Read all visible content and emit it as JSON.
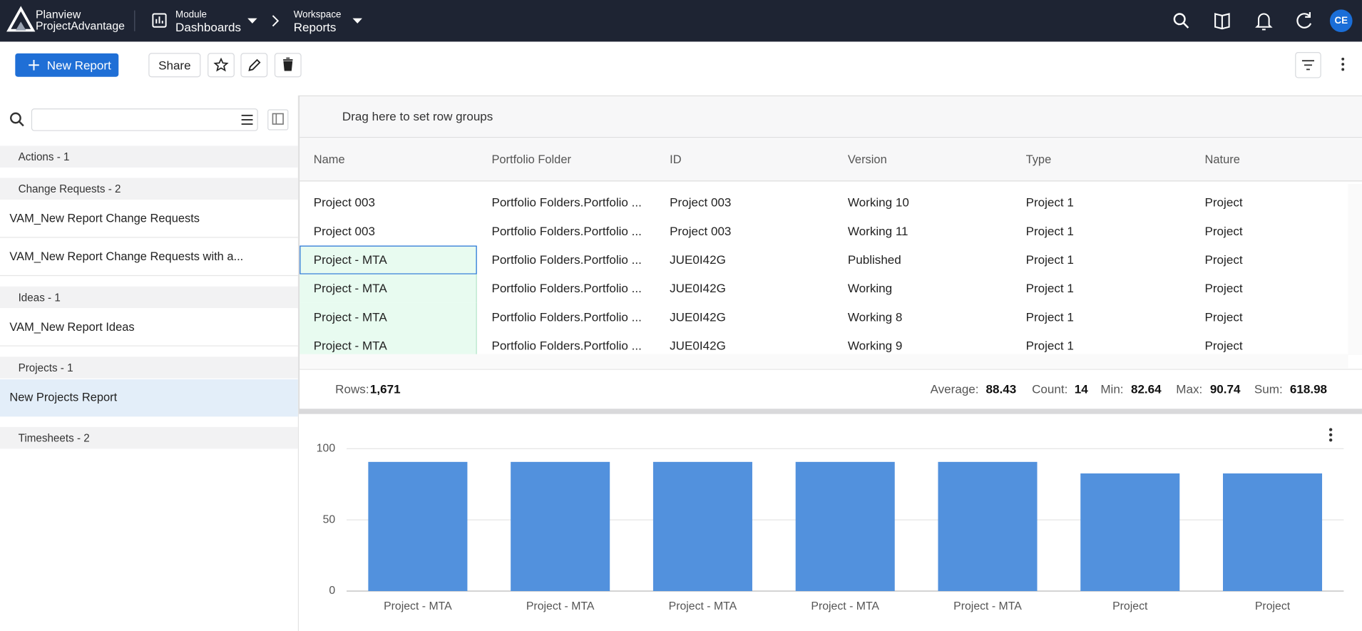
{
  "header": {
    "brand_line1": "Planview",
    "brand_line2": "ProjectAdvantage",
    "module_label": "Module",
    "module_value": "Dashboards",
    "workspace_label": "Workspace",
    "workspace_value": "Reports",
    "avatar": "CE"
  },
  "toolbar": {
    "new_report": "New Report",
    "share": "Share"
  },
  "sidebar": {
    "groups": [
      {
        "label": "Actions - 1",
        "expanded": false,
        "items": []
      },
      {
        "label": "Change Requests - 2",
        "expanded": true,
        "items": [
          "VAM_New Report Change Requests",
          "VAM_New Report Change Requests with a..."
        ]
      },
      {
        "label": "Ideas - 1",
        "expanded": true,
        "items": [
          "VAM_New Report Ideas"
        ]
      },
      {
        "label": "Projects - 1",
        "expanded": true,
        "items": [
          "New Projects Report"
        ]
      },
      {
        "label": "Timesheets - 2",
        "expanded": false,
        "items": []
      }
    ]
  },
  "grid": {
    "group_hint": "Drag here to set row groups",
    "columns": [
      "Name",
      "Portfolio Folder",
      "ID",
      "Version",
      "Type",
      "Nature"
    ],
    "rows": [
      [
        "Project 003",
        "Portfolio Folders.Portfolio ...",
        "Project 003",
        "Working 10",
        "Project 1",
        "Project"
      ],
      [
        "Project 003",
        "Portfolio Folders.Portfolio ...",
        "Project 003",
        "Working 11",
        "Project 1",
        "Project"
      ],
      [
        "Project - MTA",
        "Portfolio Folders.Portfolio ...",
        "JUE0I42G",
        "Published",
        "Project 1",
        "Project"
      ],
      [
        "Project - MTA",
        "Portfolio Folders.Portfolio ...",
        "JUE0I42G",
        "Working",
        "Project 1",
        "Project"
      ],
      [
        "Project - MTA",
        "Portfolio Folders.Portfolio ...",
        "JUE0I42G",
        "Working 8",
        "Project 1",
        "Project"
      ],
      [
        "Project - MTA",
        "Portfolio Folders.Portfolio ...",
        "JUE0I42G",
        "Working 9",
        "Project 1",
        "Project"
      ]
    ]
  },
  "status": {
    "rows_label": "Rows:",
    "rows": "1,671",
    "aggregates": [
      {
        "label": "Average:",
        "value": "88.43"
      },
      {
        "label": "Count:",
        "value": "14"
      },
      {
        "label": "Min:",
        "value": "82.64"
      },
      {
        "label": "Max:",
        "value": "90.74"
      },
      {
        "label": "Sum:",
        "value": "618.98"
      }
    ]
  },
  "chart_data": {
    "type": "bar",
    "categories": [
      "Project - MTA",
      "Project - MTA",
      "Project - MTA",
      "Project - MTA",
      "Project - MTA",
      "Project",
      "Project"
    ],
    "values": [
      90.74,
      90.74,
      90.74,
      90.74,
      90.74,
      82.64,
      82.64
    ],
    "color": "#5291dd",
    "ylim": [
      0,
      100
    ],
    "yticks": [
      0,
      50,
      100
    ],
    "grid": true
  }
}
